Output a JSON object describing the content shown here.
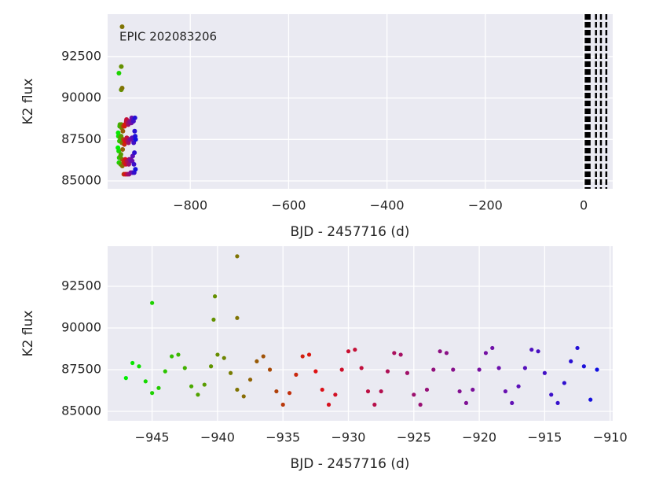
{
  "chart_data": [
    {
      "type": "scatter",
      "annotation": "EPIC 202083206",
      "xlabel": "BJD - 2457716 (d)",
      "ylabel": "K2 flux",
      "cmap": [
        "#00ee00",
        "#6a8a00",
        "#e01010",
        "#a0106a",
        "#6a10b0",
        "#1010e0"
      ],
      "x": [
        -947,
        -946.5,
        -946,
        -945.5,
        -945,
        -944.5,
        -944,
        -943.5,
        -943,
        -942.5,
        -942,
        -941.5,
        -941,
        -940.5,
        -940,
        -939.5,
        -939,
        -938.5,
        -938,
        -937.5,
        -937,
        -936.5,
        -936,
        -935.5,
        -935,
        -934.5,
        -934,
        -933.5,
        -933,
        -932.5,
        -932,
        -931.5,
        -931,
        -930.5,
        -930,
        -929.5,
        -929,
        -928.5,
        -928,
        -927.5,
        -927,
        -926.5,
        -926,
        -925.5,
        -925,
        -924.5,
        -924,
        -923.5,
        -923,
        -922.5,
        -922,
        -921.5,
        -921,
        -920.5,
        -920,
        -919.5,
        -919,
        -918.5,
        -918,
        -917.5,
        -917,
        -916.5,
        -916,
        -915.5,
        -915,
        -914.5,
        -914,
        -913.5,
        -913,
        -912.5,
        -912,
        -911.5,
        -911,
        -945,
        -940.2,
        -940.3,
        -938.5,
        -938.5
      ],
      "values": [
        87000,
        87900,
        87700,
        86800,
        86100,
        86400,
        87400,
        88300,
        88400,
        87600,
        86500,
        86000,
        86600,
        87700,
        88400,
        88200,
        87300,
        86300,
        85900,
        86900,
        88000,
        88300,
        87500,
        86200,
        85400,
        86100,
        87200,
        88300,
        88400,
        87400,
        86300,
        85400,
        86000,
        87500,
        88600,
        88700,
        87600,
        86200,
        85400,
        86200,
        87400,
        88500,
        88400,
        87300,
        86000,
        85400,
        86300,
        87500,
        88600,
        88500,
        87500,
        86200,
        85500,
        86300,
        87500,
        88500,
        88800,
        87600,
        86200,
        85500,
        86500,
        87600,
        88700,
        88600,
        87300,
        86000,
        85500,
        86700,
        88000,
        88800,
        87700,
        85700,
        87500,
        91500,
        91900,
        90500,
        94300,
        90600
      ],
      "vlines": [
        4,
        6,
        8,
        10,
        12,
        25,
        35,
        46
      ],
      "xlim": [
        -968,
        59
      ],
      "ylim": [
        84525,
        95060
      ],
      "xticks": [
        {
          "value": -800,
          "label": "−800"
        },
        {
          "value": -600,
          "label": "−600"
        },
        {
          "value": -400,
          "label": "−400"
        },
        {
          "value": -200,
          "label": "−200"
        },
        0
      ],
      "yticks": [
        85000,
        87500,
        90000,
        92500
      ],
      "grid": true
    },
    {
      "type": "scatter",
      "xlabel": "BJD - 2457716 (d)",
      "ylabel": "K2 flux",
      "cmap": [
        "#00ee00",
        "#6a8a00",
        "#e01010",
        "#a0106a",
        "#6a10b0",
        "#1010e0"
      ],
      "x": [
        -947,
        -946.5,
        -946,
        -945.5,
        -945,
        -944.5,
        -944,
        -943.5,
        -943,
        -942.5,
        -942,
        -941.5,
        -941,
        -940.5,
        -940,
        -939.5,
        -939,
        -938.5,
        -938,
        -937.5,
        -937,
        -936.5,
        -936,
        -935.5,
        -935,
        -934.5,
        -934,
        -933.5,
        -933,
        -932.5,
        -932,
        -931.5,
        -931,
        -930.5,
        -930,
        -929.5,
        -929,
        -928.5,
        -928,
        -927.5,
        -927,
        -926.5,
        -926,
        -925.5,
        -925,
        -924.5,
        -924,
        -923.5,
        -923,
        -922.5,
        -922,
        -921.5,
        -921,
        -920.5,
        -920,
        -919.5,
        -919,
        -918.5,
        -918,
        -917.5,
        -917,
        -916.5,
        -916,
        -915.5,
        -915,
        -914.5,
        -914,
        -913.5,
        -913,
        -912.5,
        -912,
        -911.5,
        -911,
        -945,
        -940.2,
        -940.3,
        -938.5,
        -938.5
      ],
      "values": [
        87000,
        87900,
        87700,
        86800,
        86100,
        86400,
        87400,
        88300,
        88400,
        87600,
        86500,
        86000,
        86600,
        87700,
        88400,
        88200,
        87300,
        86300,
        85900,
        86900,
        88000,
        88300,
        87500,
        86200,
        85400,
        86100,
        87200,
        88300,
        88400,
        87400,
        86300,
        85400,
        86000,
        87500,
        88600,
        88700,
        87600,
        86200,
        85400,
        86200,
        87400,
        88500,
        88400,
        87300,
        86000,
        85400,
        86300,
        87500,
        88600,
        88500,
        87500,
        86200,
        85500,
        86300,
        87500,
        88500,
        88800,
        87600,
        86200,
        85500,
        86500,
        87600,
        88700,
        88600,
        87300,
        86000,
        85500,
        86700,
        88000,
        88800,
        87700,
        85700,
        87500,
        91500,
        91900,
        90500,
        94300,
        90600
      ],
      "xlim": [
        -948.4,
        -909.8
      ],
      "ylim": [
        84434,
        94906
      ],
      "xticks": [
        {
          "value": -945,
          "label": "−945"
        },
        {
          "value": -940,
          "label": "−940"
        },
        {
          "value": -935,
          "label": "−935"
        },
        {
          "value": -930,
          "label": "−930"
        },
        {
          "value": -925,
          "label": "−925"
        },
        {
          "value": -920,
          "label": "−920"
        },
        {
          "value": -915,
          "label": "−915"
        },
        {
          "value": -910,
          "label": "−910"
        }
      ],
      "yticks": [
        85000,
        87500,
        90000,
        92500
      ],
      "grid": true
    }
  ]
}
